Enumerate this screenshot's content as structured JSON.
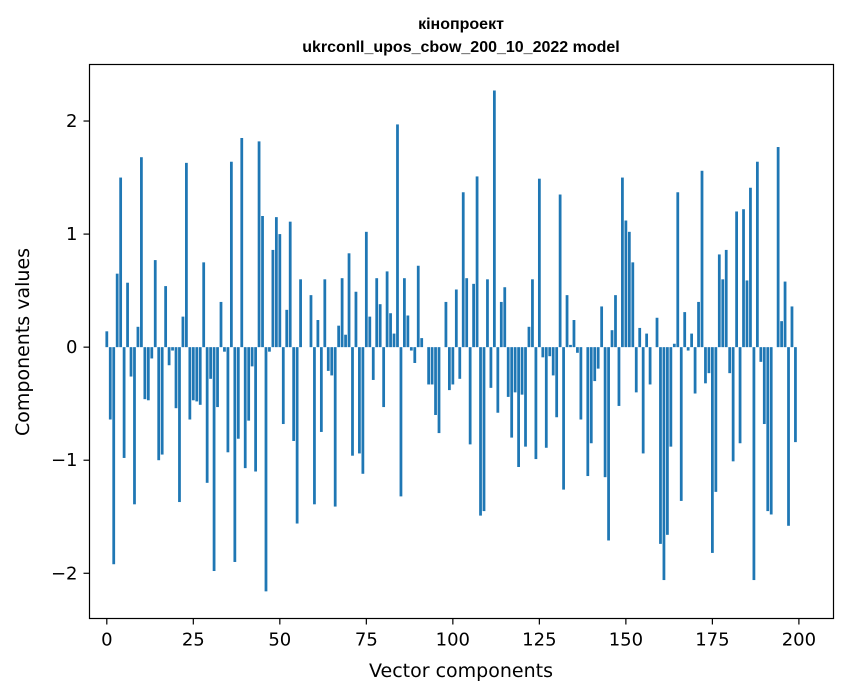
{
  "chart_data": {
    "type": "bar",
    "title_line1": "кінопроект",
    "title_line2": "ukrconll_upos_cbow_200_10_2022 model",
    "xlabel": "Vector components",
    "ylabel": "Components values",
    "xlim": [
      -5,
      210
    ],
    "ylim": [
      -2.4,
      2.5
    ],
    "xticks": [
      0,
      25,
      50,
      75,
      100,
      125,
      150,
      175,
      200
    ],
    "xtick_labels": [
      "0",
      "25",
      "50",
      "75",
      "100",
      "125",
      "150",
      "175",
      "200"
    ],
    "yticks": [
      -2,
      -1,
      0,
      1,
      2
    ],
    "ytick_labels": [
      "−2",
      "−1",
      "0",
      "1",
      "2"
    ],
    "bar_color": "#1f77b4",
    "grid": false,
    "values": [
      0.14,
      -0.64,
      -1.92,
      0.65,
      1.5,
      -0.98,
      0.57,
      -0.26,
      -1.39,
      0.18,
      1.68,
      -0.46,
      -0.47,
      -0.1,
      0.77,
      -1.0,
      -0.95,
      0.54,
      -0.16,
      -0.03,
      -0.54,
      -1.37,
      0.27,
      1.63,
      -0.64,
      -0.47,
      -0.48,
      -0.51,
      0.75,
      -1.2,
      -0.28,
      -1.98,
      -0.53,
      0.4,
      -0.04,
      -0.93,
      1.64,
      -1.9,
      -0.81,
      1.85,
      -1.07,
      -0.65,
      -0.17,
      -1.1,
      1.82,
      1.16,
      -2.16,
      -0.04,
      0.86,
      1.15,
      1.0,
      -0.68,
      0.33,
      1.11,
      -0.83,
      -1.56,
      0.6,
      0.0,
      0.0,
      0.46,
      -1.39,
      0.24,
      -0.75,
      0.6,
      -0.21,
      -0.25,
      -1.41,
      0.19,
      0.61,
      0.11,
      0.83,
      -0.96,
      0.49,
      -0.94,
      -1.12,
      1.02,
      0.27,
      -0.29,
      0.61,
      0.38,
      -0.53,
      0.67,
      0.3,
      0.12,
      1.97,
      -1.32,
      0.61,
      0.28,
      -0.03,
      -0.14,
      0.72,
      0.08,
      0.0,
      -0.33,
      -0.33,
      -0.6,
      -0.76,
      0.0,
      0.4,
      -0.38,
      -0.33,
      0.51,
      -0.28,
      1.37,
      0.61,
      -0.86,
      0.56,
      1.51,
      -1.49,
      -1.45,
      0.6,
      -0.36,
      2.27,
      -0.58,
      0.4,
      0.53,
      -0.44,
      -0.8,
      -0.4,
      -1.06,
      -0.42,
      -0.88,
      0.18,
      0.6,
      -0.99,
      1.49,
      -0.09,
      -0.89,
      -0.08,
      -0.25,
      -0.62,
      1.35,
      -1.26,
      0.46,
      0.02,
      0.24,
      -0.05,
      -0.64,
      0.0,
      -1.14,
      -0.85,
      -0.3,
      -0.19,
      0.36,
      -1.15,
      -1.71,
      0.15,
      0.46,
      -0.52,
      1.5,
      1.12,
      1.02,
      0.75,
      -0.4,
      0.17,
      -0.94,
      0.12,
      -0.33,
      0.0,
      0.26,
      -1.74,
      -2.06,
      -1.66,
      -0.88,
      0.03,
      1.37,
      -1.36,
      0.31,
      -0.03,
      0.12,
      -0.41,
      0.4,
      1.56,
      -0.32,
      -0.23,
      -1.82,
      -1.28,
      0.82,
      0.6,
      0.86,
      -0.23,
      -1.01,
      1.2,
      -0.85,
      1.22,
      0.59,
      1.41,
      -2.06,
      1.64,
      -0.13,
      -0.68,
      -1.45,
      -1.48,
      0.0,
      1.77,
      0.23,
      0.58,
      -1.58,
      0.36,
      -0.84
    ]
  }
}
